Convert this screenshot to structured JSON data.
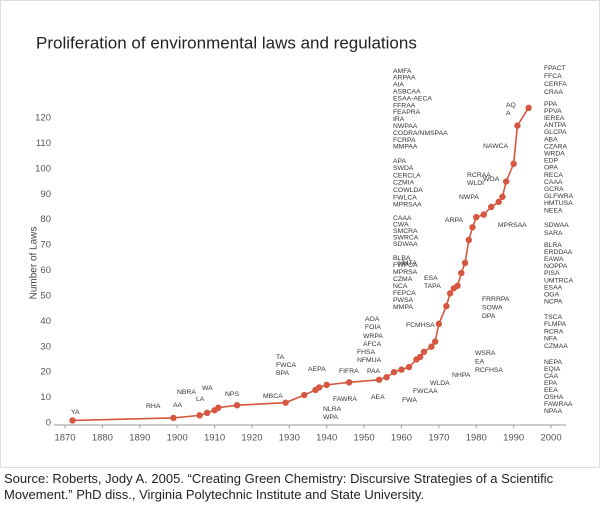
{
  "chart_data": {
    "type": "line",
    "title": "Proliferation of environmental laws and regulations",
    "y_label": "Number of Laws",
    "color": "#d6573f",
    "x": [
      1872,
      1899,
      1906,
      1908,
      1910,
      1911,
      1916,
      1929,
      1934,
      1937,
      1938,
      1940,
      1946,
      1954,
      1956,
      1958,
      1960,
      1962,
      1964,
      1965,
      1966,
      1968,
      1969,
      1970,
      1972,
      1973,
      1974,
      1975,
      1976,
      1977,
      1978,
      1979,
      1980,
      1982,
      1984,
      1986,
      1987,
      1988,
      1990,
      1991,
      1994
    ],
    "values": [
      1,
      2,
      3,
      4,
      5,
      6,
      7,
      8,
      11,
      13,
      14,
      15,
      16,
      17,
      18,
      20,
      21,
      22,
      25,
      26,
      28,
      30,
      32,
      39,
      46,
      51,
      53,
      54,
      59,
      63,
      72,
      77,
      81,
      82,
      85,
      87,
      89,
      95,
      102,
      117,
      124
    ],
    "xlim": [
      1867,
      2004
    ],
    "xticks": [
      1870,
      1880,
      1890,
      1900,
      1910,
      1920,
      1930,
      1940,
      1950,
      1960,
      1970,
      1980,
      1990,
      2000
    ],
    "ylim": [
      0,
      125
    ],
    "yticks": [
      0,
      10,
      20,
      30,
      40,
      50,
      60,
      70,
      80,
      90,
      100,
      110,
      120
    ],
    "annotations": [
      [
        "YA"
      ],
      [
        "RHA"
      ],
      [
        "AA"
      ],
      [
        "LA"
      ],
      [
        "NBRA"
      ],
      [
        "WA"
      ],
      [
        "NPS"
      ],
      [
        "MBCA"
      ],
      [
        "TA",
        "FWCA",
        "BPA"
      ],
      [
        "AEPA"
      ],
      [
        "FIFRA"
      ],
      [
        "FAWRA"
      ],
      [
        "NLRA",
        "WPA"
      ],
      [
        "PAA"
      ],
      [
        "AEA"
      ],
      [
        "FHSA",
        "NFMUA"
      ],
      [
        "WRPA",
        "AFCA"
      ],
      [
        "AOA",
        "FOIA"
      ],
      [
        "FWA"
      ],
      [
        "FWCAA"
      ],
      [
        "WLDA"
      ],
      [
        "NHPA"
      ],
      [
        "WSRA",
        "EA",
        "RCFHSA"
      ],
      [
        "FCMHSA"
      ],
      [
        "FRRRPA",
        "SOWA",
        "DPA"
      ],
      [
        "HMTA"
      ],
      [
        "ESA",
        "TAPA"
      ],
      [
        "BLBA",
        "FWPCA",
        "MPRSA",
        "CZMA",
        "NCA",
        "FEPCA",
        "PWSA",
        "MMPA"
      ],
      [
        "CAAA",
        "CWA",
        "SMCRA",
        "SWRCA",
        "SDWAA"
      ],
      [
        "ARPA"
      ],
      [
        "MPRSAA"
      ],
      [
        "APA",
        "SWDA",
        "CERCLA",
        "CZMIA",
        "COWLDA",
        "FWLCA",
        "MPRSAA"
      ],
      [
        "RCRAA",
        "WLDI"
      ],
      [
        "NWPA"
      ],
      [
        "WOA"
      ],
      [
        "AMFA",
        "ARPAA",
        "AIA",
        "ASBCAA",
        "ESAA-AECA",
        "FFRAA",
        "FEAPRA",
        "IRA",
        "NWPAA",
        "CODRA/NMSPAA",
        "FCRPA",
        "MMPAA"
      ],
      [
        "NAWCA"
      ],
      [
        "AQ",
        "A"
      ],
      [
        "FPACT",
        "FFCA",
        "CERFA",
        "CRAA"
      ],
      [
        "PPA",
        "PPVA",
        "IEREA",
        "ANTPA",
        "GLCPA",
        "ABA",
        "CZARA",
        "WRDA",
        "EDP",
        "OPA",
        "RECA",
        "CAAA",
        "GCRA",
        "GLFWRA",
        "HMTUSA",
        "NEEA"
      ],
      [
        "SDWAA",
        "SARA"
      ],
      [
        "BLRA",
        "ERDDAA",
        "EAWA",
        "NOPPA",
        "PISA",
        "UMTRCA",
        "ESAA",
        "OGA",
        "NCPA"
      ],
      [
        "TSCA",
        "FLMPA",
        "RCRA",
        "NFA",
        "CZMAA"
      ],
      [
        "NEPA",
        "EQIA",
        "CAA",
        "EPA",
        "EEA",
        "OSHA",
        "FAWRAA",
        "NPAA"
      ]
    ]
  },
  "source": "Source: Roberts, Jody A. 2005. “Creating Green Chemistry: Discursive Strategies of a Scientific Movement.” PhD diss., Virginia Polytechnic Institute and State University."
}
